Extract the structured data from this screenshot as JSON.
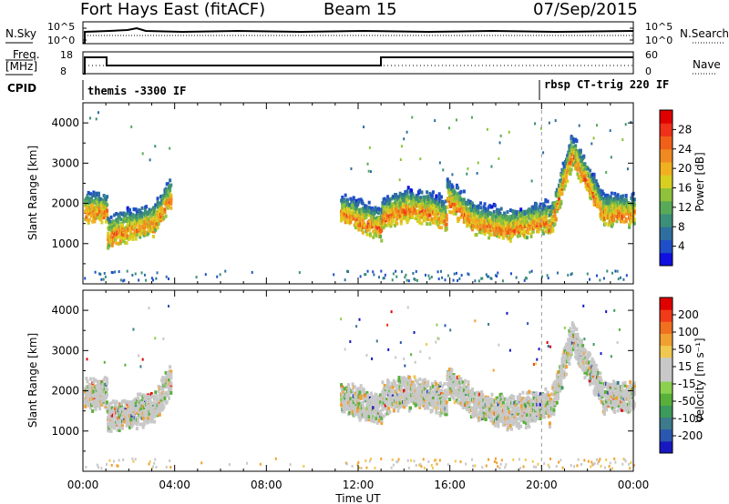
{
  "header": {
    "station": "Fort Hays East (fitACF)",
    "beam": "Beam 15",
    "date": "07/Sep/2015"
  },
  "top_panels": {
    "nsky_label": "N.Sky",
    "nsearch_label": "N.Search",
    "nsky_ticks": [
      "10^5",
      "10^0"
    ],
    "nsearch_ticks": [
      "10^5",
      "10^0"
    ],
    "freq_label_line1": "Freq.",
    "freq_label_line2": "[MHz]",
    "freq_ticks": [
      "18",
      "8"
    ],
    "nave_label": "Nave",
    "nave_ticks": [
      "60",
      "0"
    ],
    "cpid_label": "CPID",
    "cpid_segments": [
      {
        "label": "themis -3300 IF",
        "start_hour": 0.0,
        "end_hour": 20.0
      },
      {
        "label": "rbsp CT-trig 220 IF",
        "start_hour": 20.0,
        "end_hour": 24.0
      }
    ]
  },
  "chart_data": [
    {
      "type": "heatmap",
      "name": "power",
      "ylabel": "Slant Range [km]",
      "xlabel": "Time UT",
      "x_ticks": [
        "00:00",
        "04:00",
        "08:00",
        "12:00",
        "16:00",
        "20:00",
        "00:00"
      ],
      "y_ticks": [
        1000,
        2000,
        3000,
        4000
      ],
      "ylim": [
        0,
        4500
      ],
      "xlim_hours": [
        0,
        24
      ],
      "colorbar_label": "Power [dB]",
      "colorbar_ticks": [
        "28",
        "24",
        "20",
        "16",
        "12",
        "8",
        "4"
      ],
      "colorbar_colors": [
        "#1010e0",
        "#1f4fc8",
        "#2f6fa0",
        "#3c8f78",
        "#58aa58",
        "#8fc23a",
        "#d8d020",
        "#f0b020",
        "#f08a20",
        "#f06018",
        "#f03018",
        "#e00000"
      ]
    },
    {
      "type": "heatmap",
      "name": "velocity",
      "ylabel": "Slant Range [km]",
      "xlabel": "Time UT",
      "x_ticks": [
        "00:00",
        "04:00",
        "08:00",
        "12:00",
        "16:00",
        "20:00",
        "00:00"
      ],
      "y_ticks": [
        1000,
        2000,
        3000,
        4000
      ],
      "ylim": [
        0,
        4500
      ],
      "xlim_hours": [
        0,
        24
      ],
      "colorbar_label": "Velocity [m s⁻¹]",
      "colorbar_ticks": [
        "200",
        "100",
        "50",
        "15",
        "-15",
        "-50",
        "-100",
        "-200"
      ],
      "colorbar_colors": [
        "#1818c0",
        "#2a58b0",
        "#3c7a8c",
        "#3c9a5c",
        "#58b03a",
        "#8cd050",
        "#c8c8c8",
        "#c8c8c8",
        "#f0c850",
        "#f0a030",
        "#f07020",
        "#f03a18",
        "#e00000"
      ]
    }
  ],
  "x_axis": {
    "title": "Time UT"
  }
}
